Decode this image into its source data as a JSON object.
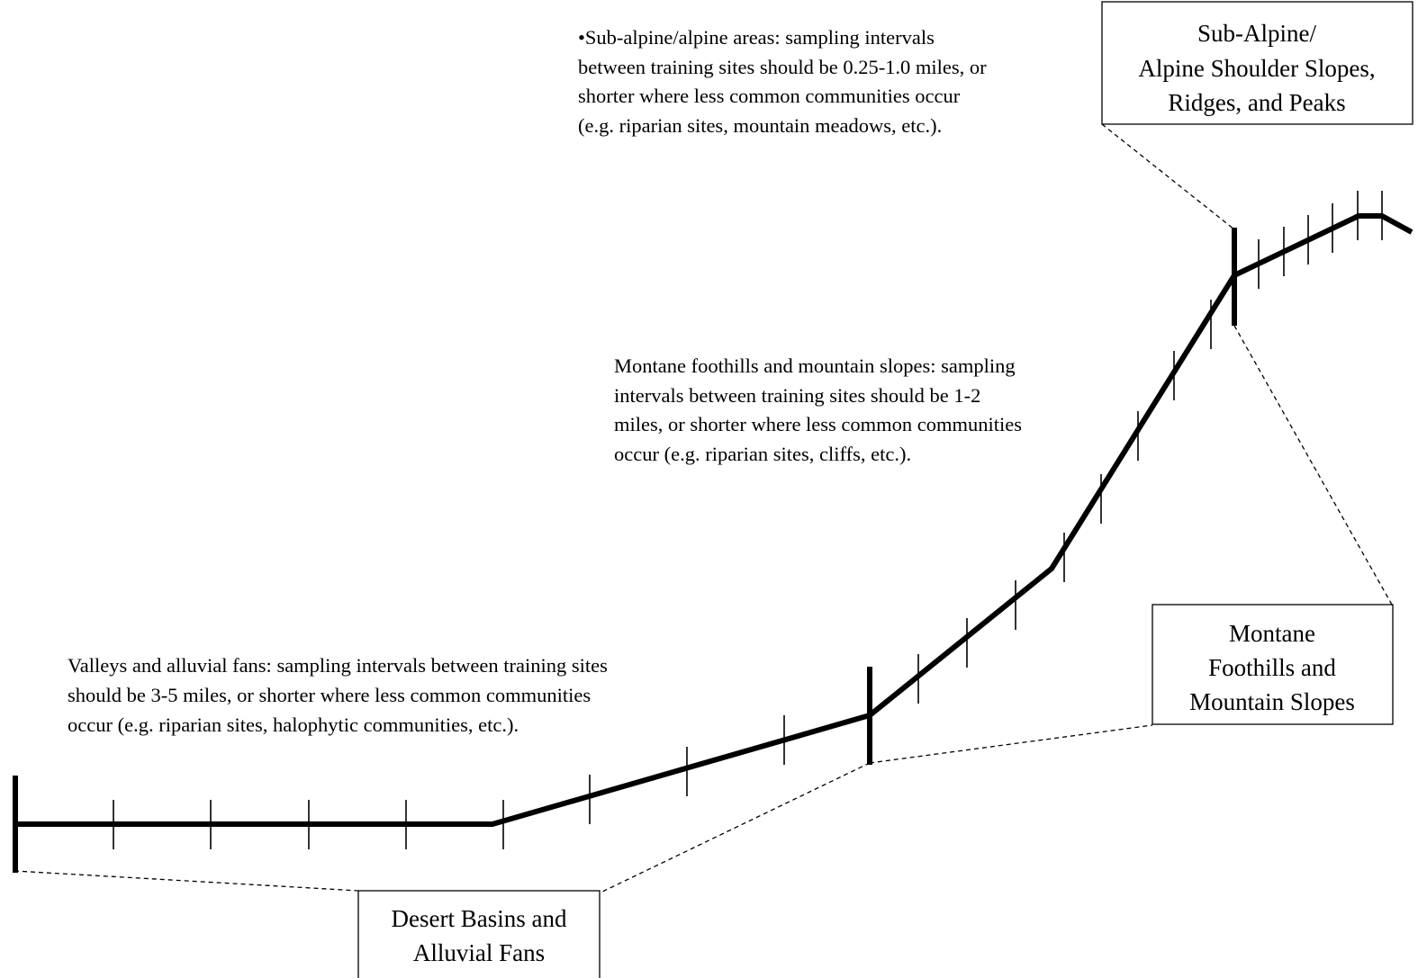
{
  "notes": {
    "subalpine": [
      "•Sub-alpine/alpine areas: sampling intervals",
      "between training sites should be 0.25-1.0 miles, or",
      "shorter where less common communities occur",
      "(e.g. riparian sites, mountain meadows, etc.)."
    ],
    "montane": [
      "Montane foothills and mountain slopes: sampling",
      "intervals between training sites should be 1-2",
      "miles, or shorter where less common communities",
      "occur (e.g. riparian sites, cliffs, etc.)."
    ],
    "valleys": [
      "Valleys and alluvial fans: sampling intervals between training sites",
      "should be 3-5 miles, or shorter where less common communities",
      "occur (e.g. riparian sites, halophytic communities, etc.)."
    ]
  },
  "zone_labels": {
    "subalpine": [
      "Sub-Alpine/",
      "Alpine Shoulder Slopes,",
      "Ridges, and Peaks"
    ],
    "montane": [
      "Montane",
      "Foothills and",
      "Mountain Slopes"
    ],
    "desert": [
      "Desert Basins and",
      "Alluvial Fans"
    ]
  },
  "colors": {
    "line": "#000000",
    "background": "#ffffff"
  }
}
